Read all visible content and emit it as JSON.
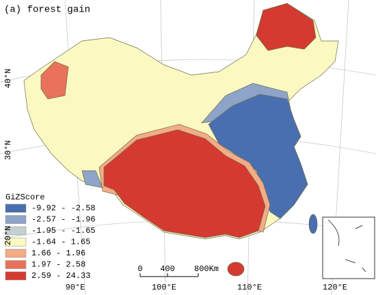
{
  "title": "(a) forest gain",
  "legend": {
    "title": "GiZScore",
    "items": [
      {
        "label": "-9.92 - -2.58",
        "color": "#4a6fb0"
      },
      {
        "label": "-2.57 - -1.96",
        "color": "#8ea4c8"
      },
      {
        "label": "-1.95 - -1.65",
        "color": "#c4cfcf"
      },
      {
        "label": "-1.64 - 1.65",
        "color": "#fbf8c2"
      },
      {
        "label": "1.66 - 1.96",
        "color": "#f3ac86"
      },
      {
        "label": "1.97 - 2.58",
        "color": "#e8735a"
      },
      {
        "label": "2.59 - 24.33",
        "color": "#d43a30"
      }
    ]
  },
  "latitude_labels": [
    "40°N",
    "30°N",
    "20°N"
  ],
  "longitude_labels": [
    "90°E",
    "100°E",
    "110°E",
    "120°E"
  ],
  "scale_bar": [
    "0",
    "400",
    "800Km"
  ]
}
